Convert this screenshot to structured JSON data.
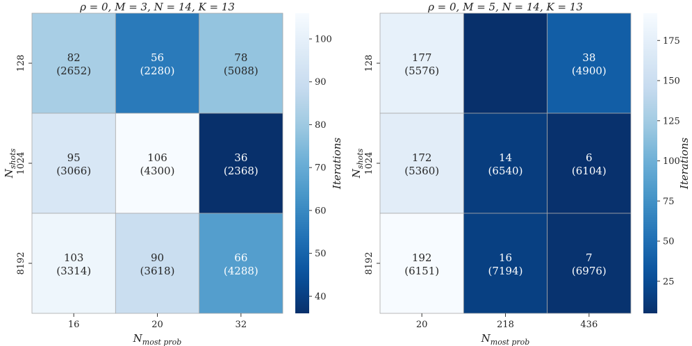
{
  "chart_data": [
    {
      "type": "heatmap",
      "title": "ρ = 0, M = 3, N = 14, K = 13",
      "xlabel": "N_most prob",
      "xlabel_main": "N",
      "xlabel_sub": "most prob",
      "ylabel": "N_shots",
      "ylabel_main": "N",
      "ylabel_sub": "shots",
      "x_categories": [
        "16",
        "20",
        "32"
      ],
      "y_categories": [
        "128",
        "1024",
        "8192"
      ],
      "cells": [
        [
          {
            "iterations": 82,
            "label": "82",
            "sub": "(2652)"
          },
          {
            "iterations": 56,
            "label": "56",
            "sub": "(2280)"
          },
          {
            "iterations": 78,
            "label": "78",
            "sub": "(5088)"
          }
        ],
        [
          {
            "iterations": 95,
            "label": "95",
            "sub": "(3066)"
          },
          {
            "iterations": 106,
            "label": "106",
            "sub": "(4300)"
          },
          {
            "iterations": 36,
            "label": "36",
            "sub": "(2368)"
          }
        ],
        [
          {
            "iterations": 103,
            "label": "103",
            "sub": "(3314)"
          },
          {
            "iterations": 90,
            "label": "90",
            "sub": "(3618)"
          },
          {
            "iterations": 66,
            "label": "66",
            "sub": "(4288)"
          }
        ]
      ],
      "colorbar": {
        "label": "Iterations",
        "range": [
          36,
          106
        ],
        "ticks": [
          40,
          50,
          60,
          70,
          80,
          90,
          100
        ]
      }
    },
    {
      "type": "heatmap",
      "title": "ρ = 0, M = 5, N = 14, K = 13",
      "xlabel": "N_most prob",
      "xlabel_main": "N",
      "xlabel_sub": "most prob",
      "ylabel": "N_shots",
      "ylabel_main": "N",
      "ylabel_sub": "shots",
      "x_categories": [
        "20",
        "218",
        "436"
      ],
      "y_categories": [
        "128",
        "1024",
        "8192"
      ],
      "cells": [
        [
          {
            "iterations": 177,
            "label": "177",
            "sub": "(5576)"
          },
          {
            "iterations": 5,
            "label": "",
            "sub": ""
          },
          {
            "iterations": 38,
            "label": "38",
            "sub": "(4900)"
          }
        ],
        [
          {
            "iterations": 172,
            "label": "172",
            "sub": "(5360)"
          },
          {
            "iterations": 14,
            "label": "14",
            "sub": "(6540)"
          },
          {
            "iterations": 6,
            "label": "6",
            "sub": "(6104)"
          }
        ],
        [
          {
            "iterations": 192,
            "label": "192",
            "sub": "(6151)"
          },
          {
            "iterations": 16,
            "label": "16",
            "sub": "(7194)"
          },
          {
            "iterations": 7,
            "label": "7",
            "sub": "(6976)"
          }
        ]
      ],
      "colorbar": {
        "label": "Iterations",
        "range": [
          5,
          192
        ],
        "ticks": [
          25,
          50,
          75,
          100,
          125,
          150,
          175
        ]
      }
    }
  ]
}
